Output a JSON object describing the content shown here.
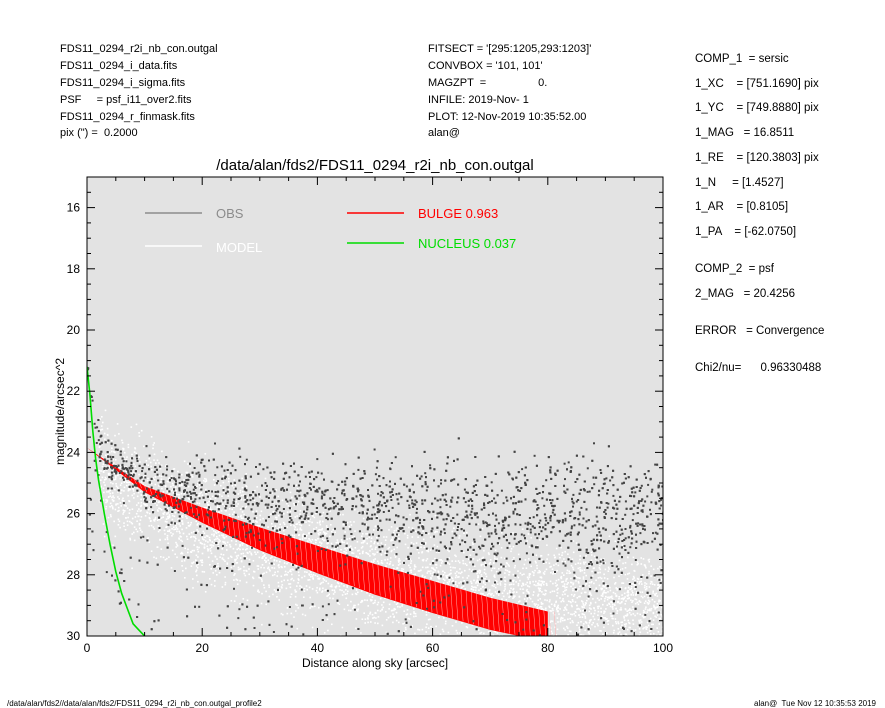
{
  "header_left": [
    "FDS11_0294_r2i_nb_con.outgal",
    "FDS11_0294_i_data.fits",
    "FDS11_0294_i_sigma.fits",
    "PSF     = psf_i11_over2.fits",
    "FDS11_0294_r_finmask.fits",
    "pix (\") =  0.2000"
  ],
  "header_mid": [
    "FITSECT = '[295:1205,293:1203]'",
    "CONVBOX = '101, 101'",
    "MAGZPT  =                 0.",
    "INFILE: 2019-Nov- 1",
    "PLOT: 12-Nov-2019 10:35:52.00",
    "alan@"
  ],
  "side_panel": [
    "COMP_1  = sersic",
    "1_XC    = [751.1690] pix",
    "1_YC    = [749.8880] pix",
    "1_MAG   = 16.8511",
    "1_RE    = [120.3803] pix",
    "1_N     = [1.4527]",
    "1_AR    = [0.8105]",
    "1_PA    = [-62.0750]",
    "COMP_2  = psf",
    "2_MAG   = 20.4256",
    "ERROR   = Convergence",
    "Chi2/nu=      0.96330488"
  ],
  "footer_left": "/data/alan/fds2//data/alan/fds2/FDS11_0294_r2i_nb_con.outgal_profile2",
  "footer_right": "alan@  Tue Nov 12 10:35:53 2019",
  "chart_data": {
    "type": "scatter",
    "title": "/data/alan/fds2/FDS11_0294_r2i_nb_con.outgal",
    "xlabel": "Distance along sky [arcsec]",
    "ylabel": "magnitude/arcsec^2",
    "xlim": [
      0,
      100
    ],
    "ylim": [
      30,
      15
    ],
    "y_inverted": true,
    "x_ticks": [
      0,
      20,
      40,
      60,
      80,
      100
    ],
    "y_ticks": [
      16,
      18,
      20,
      22,
      24,
      26,
      28,
      30
    ],
    "background": "#e3e3e3",
    "legend": [
      {
        "label": "OBS",
        "color": "#8c8c8c"
      },
      {
        "label": "MODEL",
        "color": "#ffffff"
      },
      {
        "label": "BULGE  0.963",
        "color": "#ff0000"
      },
      {
        "label": "NUCLEUS  0.037",
        "color": "#00dd00"
      }
    ],
    "series": [
      {
        "name": "BULGE  0.963",
        "color": "#ff0000",
        "band_upper": {
          "x": [
            0,
            10,
            20,
            30,
            40,
            50,
            60,
            70,
            80
          ],
          "y": [
            23.85,
            25.1,
            25.8,
            26.45,
            27.05,
            27.65,
            28.2,
            28.75,
            29.2
          ]
        },
        "band_lower": {
          "x": [
            0,
            10,
            20,
            30,
            40,
            50,
            60,
            70,
            80
          ],
          "y": [
            23.85,
            25.3,
            26.3,
            27.2,
            27.95,
            28.65,
            29.25,
            29.8,
            30.2
          ]
        }
      },
      {
        "name": "NUCLEUS  0.037",
        "color": "#00dd00",
        "x": [
          0,
          0.5,
          1,
          1.5,
          2,
          3,
          4,
          5,
          6,
          7,
          8,
          9,
          10
        ],
        "y": [
          21.2,
          22.1,
          23.3,
          24.2,
          24.9,
          26.0,
          27.0,
          27.9,
          28.6,
          29.1,
          29.6,
          29.8,
          30.0
        ]
      },
      {
        "name": "OBS",
        "color": "#444444",
        "x": [
          0,
          0.5,
          1,
          1.5,
          2,
          3,
          4,
          5,
          6,
          8,
          10,
          15,
          20,
          30,
          40,
          50,
          60,
          70,
          80,
          90,
          100
        ],
        "y": [
          21.2,
          22.3,
          23.0,
          23.4,
          23.8,
          24.2,
          24.4,
          24.5,
          24.6,
          24.7,
          24.8,
          25.1,
          25.3,
          25.6,
          25.75,
          25.85,
          25.9,
          25.95,
          26.0,
          26.0,
          26.0
        ]
      },
      {
        "name": "MODEL",
        "color": "#ffffff",
        "x": [
          3,
          10,
          20,
          30,
          40,
          50,
          60,
          70,
          80,
          90,
          100
        ],
        "y": [
          24.7,
          25.4,
          26.3,
          27.0,
          27.6,
          28.0,
          28.4,
          28.6,
          28.8,
          28.9,
          29.0
        ]
      }
    ]
  }
}
